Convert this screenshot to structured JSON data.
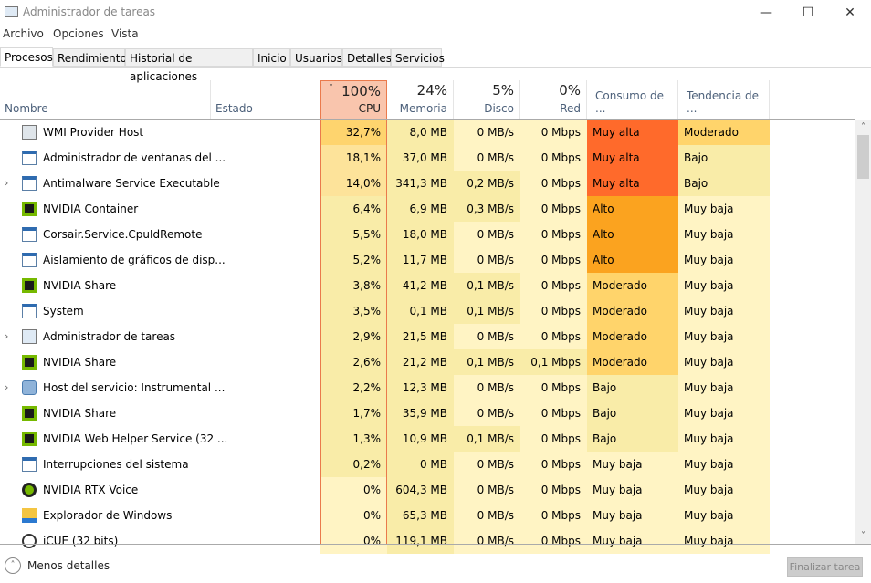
{
  "window": {
    "title": "Administrador de tareas",
    "minimize": "—",
    "maximize": "☐",
    "close": "✕"
  },
  "menu": [
    "Archivo",
    "Opciones",
    "Vista"
  ],
  "tabs": [
    "Procesos",
    "Rendimiento",
    "Historial de aplicaciones",
    "Inicio",
    "Usuarios",
    "Detalles",
    "Servicios"
  ],
  "header": {
    "name": "Nombre",
    "status": "Estado",
    "cpu_pct": "100%",
    "cpu": "CPU",
    "mem_pct": "24%",
    "mem": "Memoria",
    "disk_pct": "5%",
    "disk": "Disco",
    "net_pct": "0%",
    "net": "Red",
    "power": "Consumo de ...",
    "trend": "Tendencia de ..."
  },
  "colors": {
    "light": "#fff4c4",
    "mid": "#f9eca8",
    "high": "#fde39a",
    "top": "#fed46e",
    "muy_alta": "#ff6a2b",
    "alto": "#fba31f",
    "moderado": "#ffd46b"
  },
  "processes": [
    {
      "name": "WMI Provider Host",
      "icon": "wmi-icon",
      "expand": false,
      "cpu": "32,7%",
      "mem": "8,0 MB",
      "disk": "0 MB/s",
      "net": "0 Mbps",
      "power": "Muy alta",
      "trend": "Moderado",
      "cpuLevel": 3
    },
    {
      "name": "Administrador de ventanas del ...",
      "icon": "window-icon",
      "expand": false,
      "cpu": "18,1%",
      "mem": "37,0 MB",
      "disk": "0 MB/s",
      "net": "0 Mbps",
      "power": "Muy alta",
      "trend": "Bajo",
      "cpuLevel": 2
    },
    {
      "name": "Antimalware Service Executable",
      "icon": "window-icon",
      "expand": true,
      "cpu": "14,0%",
      "mem": "341,3 MB",
      "disk": "0,2 MB/s",
      "net": "0 Mbps",
      "power": "Muy alta",
      "trend": "Bajo",
      "cpuLevel": 2
    },
    {
      "name": "NVIDIA Container",
      "icon": "nvidia-icon",
      "expand": false,
      "cpu": "6,4%",
      "mem": "6,9 MB",
      "disk": "0,3 MB/s",
      "net": "0 Mbps",
      "power": "Alto",
      "trend": "Muy baja",
      "cpuLevel": 1
    },
    {
      "name": "Corsair.Service.CpuIdRemote",
      "icon": "window-icon",
      "expand": false,
      "cpu": "5,5%",
      "mem": "18,0 MB",
      "disk": "0 MB/s",
      "net": "0 Mbps",
      "power": "Alto",
      "trend": "Muy baja",
      "cpuLevel": 1
    },
    {
      "name": "Aislamiento de gráficos de disp...",
      "icon": "window-icon",
      "expand": false,
      "cpu": "5,2%",
      "mem": "11,7 MB",
      "disk": "0 MB/s",
      "net": "0 Mbps",
      "power": "Alto",
      "trend": "Muy baja",
      "cpuLevel": 1
    },
    {
      "name": "NVIDIA Share",
      "icon": "nvidia-icon",
      "expand": false,
      "cpu": "3,8%",
      "mem": "41,2 MB",
      "disk": "0,1 MB/s",
      "net": "0 Mbps",
      "power": "Moderado",
      "trend": "Muy baja",
      "cpuLevel": 1
    },
    {
      "name": "System",
      "icon": "window-icon",
      "expand": false,
      "cpu": "3,5%",
      "mem": "0,1 MB",
      "disk": "0,1 MB/s",
      "net": "0 Mbps",
      "power": "Moderado",
      "trend": "Muy baja",
      "cpuLevel": 1
    },
    {
      "name": "Administrador de tareas",
      "icon": "taskmgr-icon",
      "expand": true,
      "cpu": "2,9%",
      "mem": "21,5 MB",
      "disk": "0 MB/s",
      "net": "0 Mbps",
      "power": "Moderado",
      "trend": "Muy baja",
      "cpuLevel": 1
    },
    {
      "name": "NVIDIA Share",
      "icon": "nvidia-icon",
      "expand": false,
      "cpu": "2,6%",
      "mem": "21,2 MB",
      "disk": "0,1 MB/s",
      "net": "0,1 Mbps",
      "power": "Moderado",
      "trend": "Muy baja",
      "cpuLevel": 1
    },
    {
      "name": "Host del servicio: Instrumental ...",
      "icon": "gear-icon",
      "expand": true,
      "cpu": "2,2%",
      "mem": "12,3 MB",
      "disk": "0 MB/s",
      "net": "0 Mbps",
      "power": "Bajo",
      "trend": "Muy baja",
      "cpuLevel": 1
    },
    {
      "name": "NVIDIA Share",
      "icon": "nvidia-icon",
      "expand": false,
      "cpu": "1,7%",
      "mem": "35,9 MB",
      "disk": "0 MB/s",
      "net": "0 Mbps",
      "power": "Bajo",
      "trend": "Muy baja",
      "cpuLevel": 1
    },
    {
      "name": "NVIDIA Web Helper Service (32 ...",
      "icon": "nvidia-icon",
      "expand": false,
      "cpu": "1,3%",
      "mem": "10,9 MB",
      "disk": "0,1 MB/s",
      "net": "0 Mbps",
      "power": "Bajo",
      "trend": "Muy baja",
      "cpuLevel": 1
    },
    {
      "name": "Interrupciones del sistema",
      "icon": "window-icon",
      "expand": false,
      "cpu": "0,2%",
      "mem": "0 MB",
      "disk": "0 MB/s",
      "net": "0 Mbps",
      "power": "Muy baja",
      "trend": "Muy baja",
      "cpuLevel": 1
    },
    {
      "name": "NVIDIA RTX Voice",
      "icon": "headset-icon",
      "expand": false,
      "cpu": "0%",
      "mem": "604,3 MB",
      "disk": "0 MB/s",
      "net": "0 Mbps",
      "power": "Muy baja",
      "trend": "Muy baja",
      "cpuLevel": 0
    },
    {
      "name": "Explorador de Windows",
      "icon": "folder-icon",
      "expand": false,
      "cpu": "0%",
      "mem": "65,3 MB",
      "disk": "0 MB/s",
      "net": "0 Mbps",
      "power": "Muy baja",
      "trend": "Muy baja",
      "cpuLevel": 0
    },
    {
      "name": "iCUE (32 bits)",
      "icon": "icue-icon",
      "expand": false,
      "cpu": "0%",
      "mem": "119,1 MB",
      "disk": "0 MB/s",
      "net": "0 Mbps",
      "power": "Muy baja",
      "trend": "Muy baja",
      "cpuLevel": 0
    }
  ],
  "footer": {
    "less": "Menos detalles",
    "end_task": "Finalizar tarea"
  }
}
